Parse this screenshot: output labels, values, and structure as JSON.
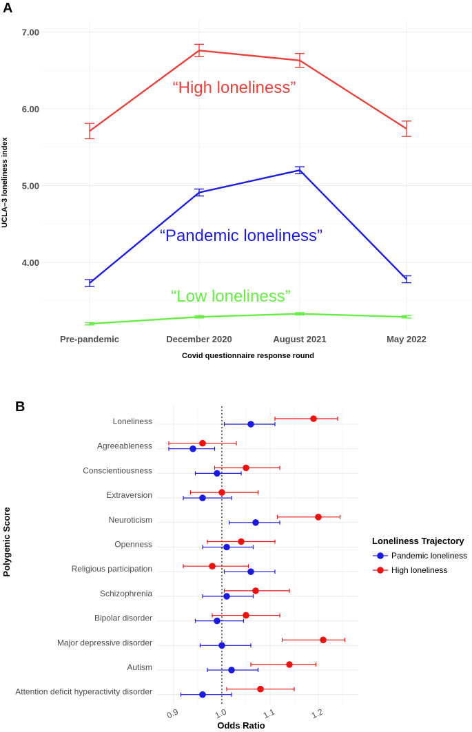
{
  "chart_data": [
    {
      "panel": "A",
      "type": "line",
      "xlabel": "Covid questionnaire response round",
      "ylabel": "UCLA–3 loneliness index",
      "categories": [
        "Pre-pandemic",
        "December 2020",
        "August 2021",
        "May 2022"
      ],
      "y_ticks": [
        "4.00",
        "5.00",
        "6.00",
        "7.00"
      ],
      "ylim": [
        3.15,
        7.05
      ],
      "series": [
        {
          "name": "“High loneliness”",
          "color": "#e8423a",
          "values": [
            5.71,
            6.76,
            6.63,
            5.74
          ],
          "errors": [
            0.1,
            0.08,
            0.09,
            0.1
          ]
        },
        {
          "name": "“Pandemic loneliness”",
          "color": "#1d1de0",
          "values": [
            3.73,
            4.91,
            5.2,
            3.78
          ],
          "errors": [
            0.045,
            0.045,
            0.045,
            0.045
          ]
        },
        {
          "name": "“Low loneliness”",
          "color": "#66ee44",
          "values": [
            3.2,
            3.29,
            3.33,
            3.29
          ],
          "errors": [
            0.015,
            0.015,
            0.015,
            0.015
          ]
        }
      ]
    },
    {
      "panel": "B",
      "type": "scatter",
      "xlabel": "Odds Ratio",
      "ylabel": "Polygenic Score",
      "x_ticks": [
        "0.9",
        "1.0",
        "1.1",
        "1.2"
      ],
      "xlim": [
        0.87,
        1.27
      ],
      "reference_line": 1.0,
      "categories": [
        "Loneliness",
        "Agreeableness",
        "Conscientiousness",
        "Extraversion",
        "Neuroticism",
        "Openness",
        "Religious participation",
        "Schizophrenia",
        "Bipolar disorder",
        "Major depressive disorder",
        "Autism",
        "Attention deficit hyperactivity disorder"
      ],
      "legend_title": "Loneliness Trajectory",
      "series": [
        {
          "name": "Pandemic loneliness",
          "color": "#1a1ae0",
          "or": [
            1.06,
            0.94,
            0.99,
            0.96,
            1.07,
            1.01,
            1.06,
            1.01,
            0.99,
            1.0,
            1.02,
            0.96
          ],
          "lo": [
            1.005,
            0.89,
            0.945,
            0.92,
            1.015,
            0.96,
            1.005,
            0.96,
            0.945,
            0.955,
            0.97,
            0.915
          ],
          "hi": [
            1.11,
            0.985,
            1.04,
            1.02,
            1.12,
            1.065,
            1.11,
            1.065,
            1.045,
            1.06,
            1.075,
            1.02
          ]
        },
        {
          "name": "High loneliness",
          "color": "#ee1111",
          "or": [
            1.19,
            0.96,
            1.05,
            1.0,
            1.2,
            1.04,
            0.98,
            1.07,
            1.05,
            1.21,
            1.14,
            1.08
          ],
          "lo": [
            1.11,
            0.89,
            0.985,
            0.935,
            1.115,
            0.97,
            0.92,
            1.005,
            0.98,
            1.125,
            1.06,
            1.01
          ],
          "hi": [
            1.24,
            1.03,
            1.12,
            1.075,
            1.245,
            1.11,
            1.055,
            1.14,
            1.12,
            1.255,
            1.195,
            1.15
          ]
        }
      ]
    }
  ],
  "panel_labels": [
    "A",
    "B"
  ]
}
